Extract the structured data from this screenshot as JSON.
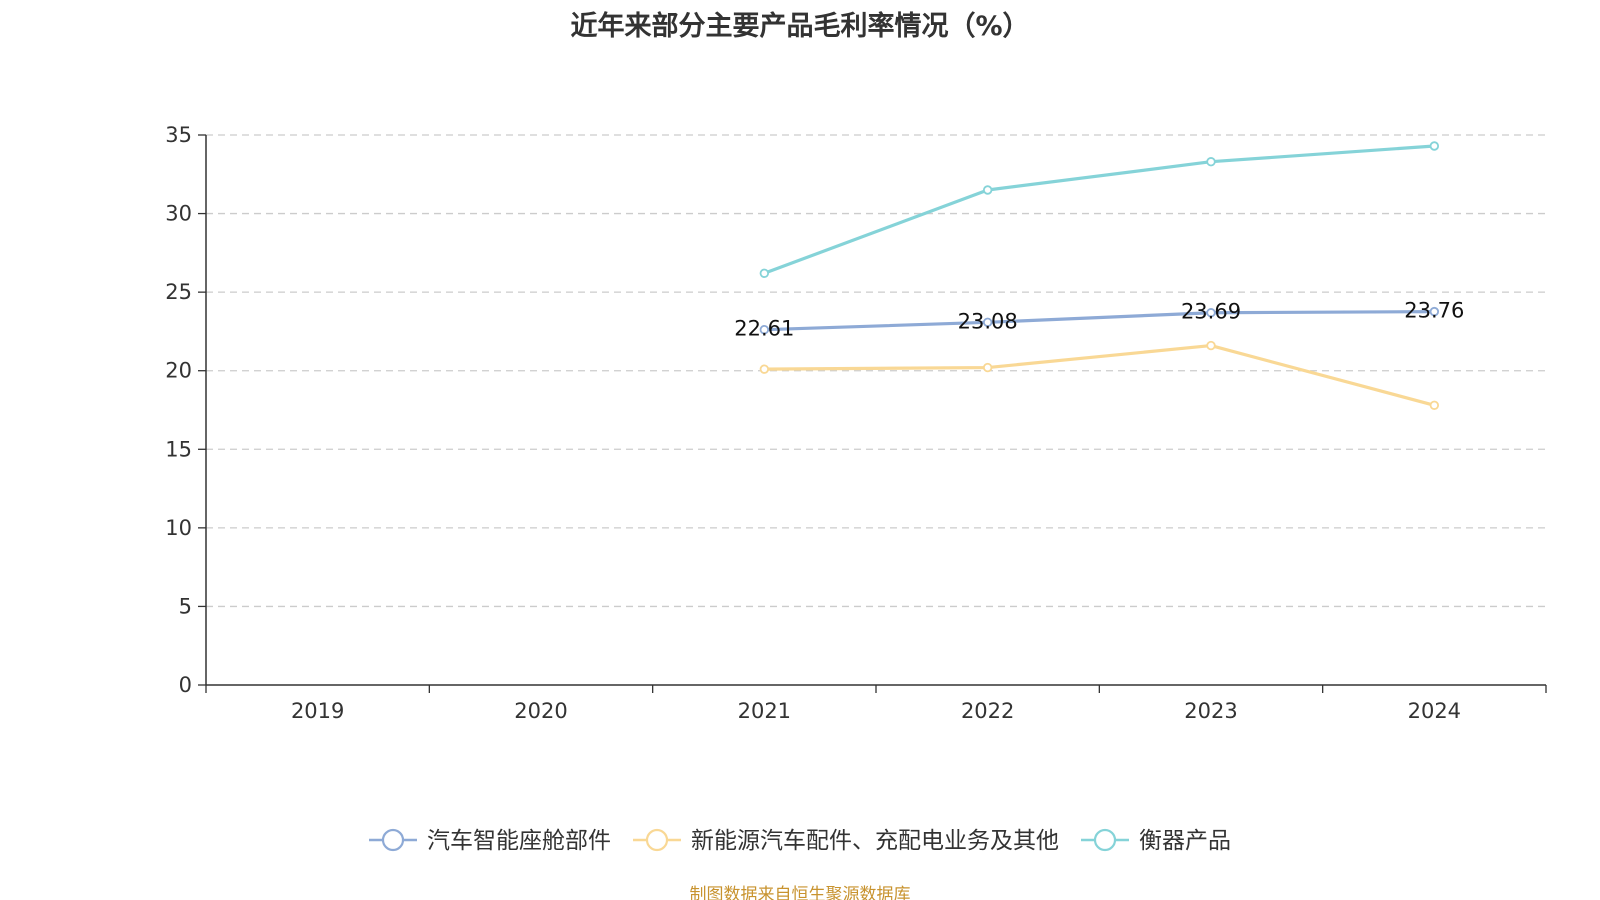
{
  "chart_data": {
    "type": "line",
    "title": "近年来部分主要产品毛利率情况（%）",
    "categories": [
      "2019",
      "2020",
      "2021",
      "2022",
      "2023",
      "2024"
    ],
    "y_ticks": [
      "0",
      "5",
      "10",
      "15",
      "20",
      "25",
      "30",
      "35"
    ],
    "ylim": [
      0,
      35
    ],
    "grid": true,
    "legend_position": "bottom",
    "series": [
      {
        "name": "汽车智能座舱部件",
        "color": "#8eaad6",
        "values": [
          null,
          null,
          22.61,
          23.08,
          23.69,
          23.76
        ],
        "labels": [
          "",
          "",
          "22.61",
          "23.08",
          "23.69",
          "23.76"
        ]
      },
      {
        "name": "新能源汽车配件、充配电业务及其他",
        "color": "#f9d895",
        "values": [
          null,
          null,
          20.1,
          20.2,
          21.6,
          17.8
        ],
        "labels": [
          "",
          "",
          "",
          "",
          "",
          ""
        ]
      },
      {
        "name": "衡器产品",
        "color": "#85d3d8",
        "values": [
          null,
          null,
          26.2,
          31.5,
          33.3,
          34.3
        ],
        "labels": [
          "",
          "",
          "",
          "",
          "",
          ""
        ]
      }
    ]
  },
  "source": "制图数据来自恒生聚源数据库"
}
